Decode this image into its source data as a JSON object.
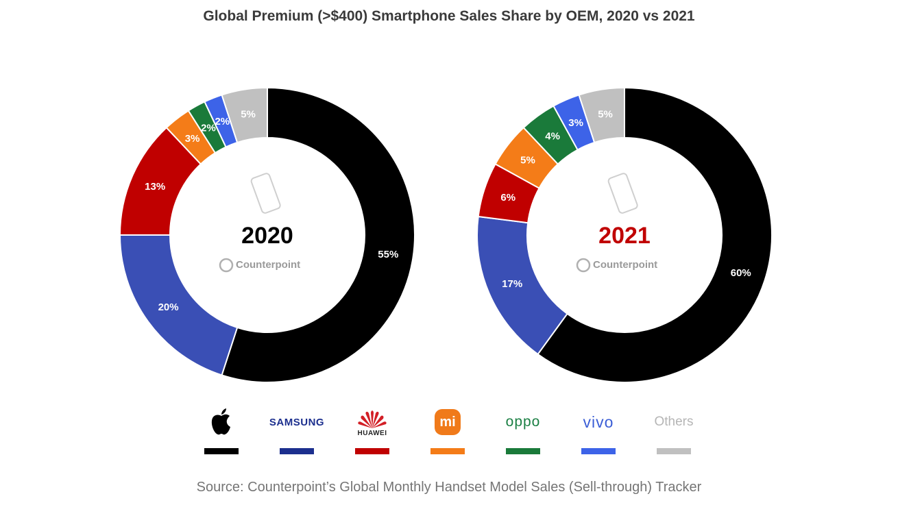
{
  "title": "Global Premium (>$400) Smartphone Sales Share by OEM, 2020 vs 2021",
  "source": "Source: Counterpoint’s Global Monthly Handset Model Sales (Sell-through) Tracker",
  "watermark": "Counterpoint",
  "colors": {
    "Apple": "#000000",
    "Samsung": "#3a4fb5",
    "Huawei": "#c00000",
    "Xiaomi": "#f47c18",
    "OPPO": "#1a7a3a",
    "vivo": "#3d63e8",
    "Others": "#c0c0c0",
    "year_2020": "#000000",
    "year_2021": "#c00000"
  },
  "legend": {
    "samsung": "SAMSUNG",
    "huawei": "HUAWEI",
    "xiaomi": "mi",
    "oppo": "oppo",
    "vivo": "vivo",
    "others": "Others",
    "apple_icon": "apple-logo-icon",
    "huawei_icon": "huawei-petal-icon"
  },
  "chart_data": [
    {
      "type": "pie",
      "year_label": "2020",
      "slices": [
        {
          "category": "Apple",
          "value": 55,
          "label": "55%"
        },
        {
          "category": "Samsung",
          "value": 20,
          "label": "20%"
        },
        {
          "category": "Huawei",
          "value": 13,
          "label": "13%"
        },
        {
          "category": "Xiaomi",
          "value": 3,
          "label": "3%"
        },
        {
          "category": "OPPO",
          "value": 2,
          "label": "2%"
        },
        {
          "category": "vivo",
          "value": 2,
          "label": "2%"
        },
        {
          "category": "Others",
          "value": 5,
          "label": "5%"
        }
      ]
    },
    {
      "type": "pie",
      "year_label": "2021",
      "slices": [
        {
          "category": "Apple",
          "value": 60,
          "label": "60%"
        },
        {
          "category": "Samsung",
          "value": 17,
          "label": "17%"
        },
        {
          "category": "Huawei",
          "value": 6,
          "label": "6%"
        },
        {
          "category": "Xiaomi",
          "value": 5,
          "label": "5%"
        },
        {
          "category": "OPPO",
          "value": 4,
          "label": "4%"
        },
        {
          "category": "vivo",
          "value": 3,
          "label": "3%"
        },
        {
          "category": "Others",
          "value": 5,
          "label": "5%"
        }
      ]
    }
  ]
}
